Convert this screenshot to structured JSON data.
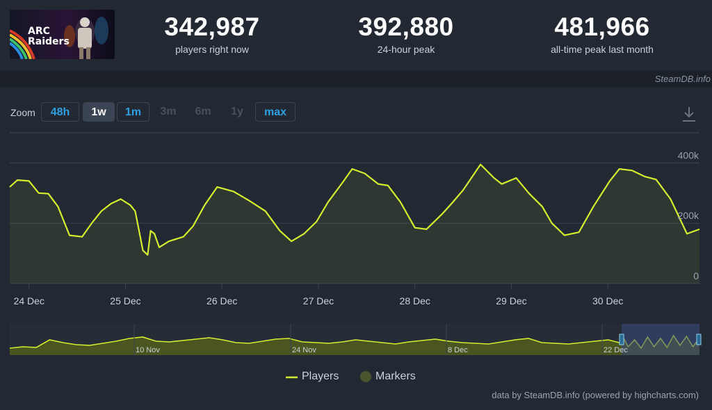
{
  "game": {
    "logo_text_1": "ARC",
    "logo_text_2": "Raiders"
  },
  "stats": [
    {
      "value": "342,987",
      "label": "players right now"
    },
    {
      "value": "392,880",
      "label": "24-hour peak"
    },
    {
      "value": "481,966",
      "label": "all-time peak last month"
    }
  ],
  "attribution_top": "SteamDB.info",
  "zoom": {
    "label": "Zoom",
    "buttons": [
      {
        "label": "48h",
        "state": "enabled"
      },
      {
        "label": "1w",
        "state": "selected"
      },
      {
        "label": "1m",
        "state": "enabled"
      },
      {
        "label": "3m",
        "state": "disabled"
      },
      {
        "label": "6m",
        "state": "disabled"
      },
      {
        "label": "1y",
        "state": "disabled"
      },
      {
        "label": "max",
        "state": "enabled"
      }
    ]
  },
  "download_icon": "download-icon",
  "legend": {
    "players": "Players",
    "markers": "Markers"
  },
  "credit": "data by SteamDB.info (powered by highcharts.com)",
  "colors": {
    "line": "#d4ee2f",
    "markers": "#4a5530",
    "navigator_fill": "#4a5520",
    "grid": "#3a4350",
    "selection": "#3b4a80",
    "background": "#222933",
    "accent": "#2e9fe0"
  },
  "chart_data": {
    "type": "line",
    "title": "",
    "series": [
      {
        "name": "Players",
        "x": [
          23.8,
          23.88,
          24.0,
          24.1,
          24.2,
          24.3,
          24.42,
          24.55,
          24.65,
          24.75,
          24.85,
          24.95,
          25.05,
          25.1,
          25.15,
          25.18,
          25.23,
          25.26,
          25.3,
          25.35,
          25.45,
          25.6,
          25.7,
          25.82,
          25.95,
          26.12,
          26.28,
          26.45,
          26.6,
          26.72,
          26.85,
          26.98,
          27.1,
          27.25,
          27.35,
          27.48,
          27.62,
          27.72,
          27.85,
          28.0,
          28.12,
          28.28,
          28.38,
          28.5,
          28.68,
          28.82,
          28.9,
          29.05,
          29.18,
          29.32,
          29.42,
          29.55,
          29.7,
          29.85,
          30.02,
          30.12,
          30.25,
          30.38,
          30.5,
          30.65,
          30.82,
          30.95
        ],
        "y": [
          320,
          343,
          340,
          300,
          298,
          255,
          160,
          155,
          200,
          240,
          265,
          280,
          260,
          240,
          160,
          110,
          95,
          175,
          165,
          120,
          140,
          155,
          190,
          260,
          320,
          305,
          275,
          240,
          175,
          140,
          165,
          205,
          270,
          335,
          380,
          365,
          330,
          325,
          270,
          185,
          180,
          230,
          265,
          310,
          395,
          350,
          330,
          350,
          300,
          255,
          200,
          160,
          170,
          255,
          340,
          380,
          375,
          355,
          345,
          280,
          165,
          180
        ]
      }
    ],
    "x_ticks": [
      "24 Dec",
      "25 Dec",
      "26 Dec",
      "27 Dec",
      "28 Dec",
      "29 Dec",
      "30 Dec"
    ],
    "y_ticks": [
      "400k",
      "200k",
      "0"
    ],
    "ylim": [
      0,
      500
    ],
    "grid": true,
    "navigator": {
      "ticks": [
        "10 Nov",
        "24 Nov",
        "8 Dec",
        "22 Dec"
      ],
      "selected_range": [
        "23 Dec",
        "30 Dec"
      ]
    },
    "legend_position": "bottom"
  }
}
